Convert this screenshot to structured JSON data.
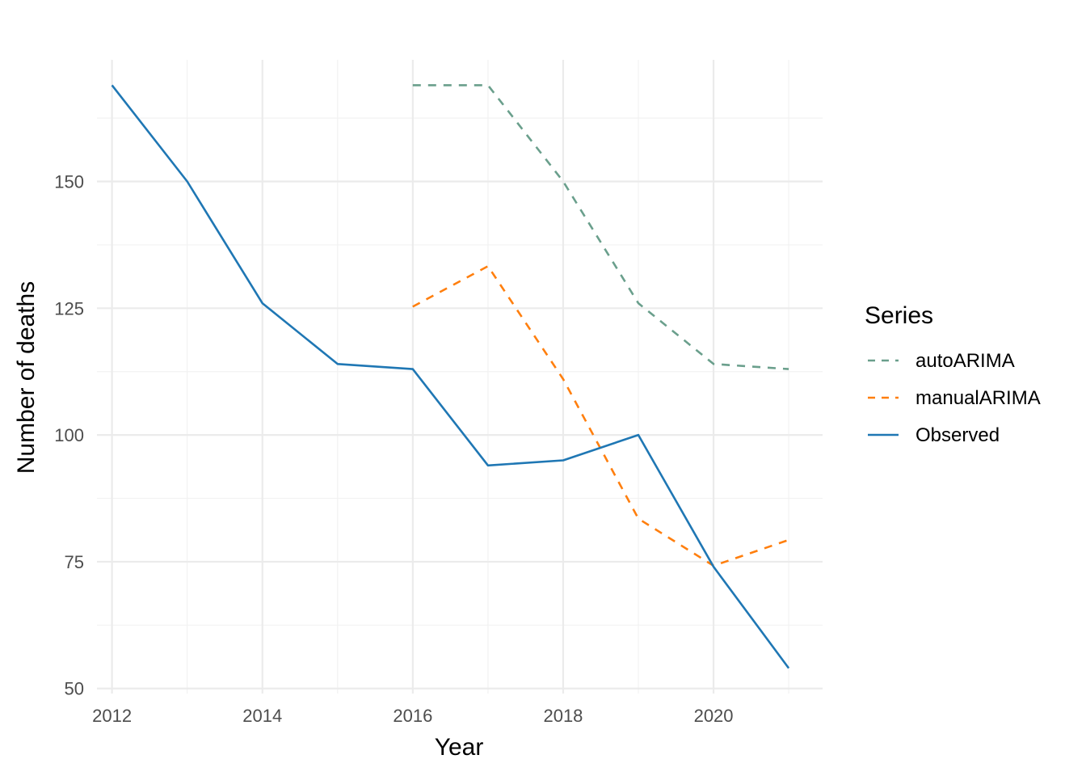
{
  "chart_data": {
    "type": "line",
    "title": "",
    "xlabel": "Year",
    "ylabel": "Number of deaths",
    "xlim": [
      2011.8,
      2021.45
    ],
    "ylim": [
      49,
      174
    ],
    "x_ticks": [
      2012,
      2014,
      2016,
      2018,
      2020
    ],
    "x_ticks_text": [
      "2012",
      "2014",
      "2016",
      "2018",
      "2020"
    ],
    "y_ticks": [
      50,
      75,
      100,
      125,
      150
    ],
    "y_ticks_text": [
      "50",
      "75",
      "100",
      "125",
      "150"
    ],
    "grid": true,
    "legend": {
      "title": "Series",
      "position": "right"
    },
    "series": [
      {
        "name": "autoARIMA",
        "color": "#6a9f8c",
        "dash": "dashed",
        "x": [
          2016,
          2017,
          2018,
          2019,
          2020,
          2021
        ],
        "y": [
          169,
          169,
          150,
          126,
          114,
          113
        ]
      },
      {
        "name": "manualARIMA",
        "color": "#ff7f0e",
        "dash": "dashed",
        "x": [
          2016,
          2017,
          2018,
          2019,
          2020,
          2021
        ],
        "y": [
          125.3,
          133.3,
          111,
          83.5,
          74.2,
          79.3
        ]
      },
      {
        "name": "Observed",
        "color": "#1f77b4",
        "dash": "solid",
        "x": [
          2012,
          2013,
          2014,
          2015,
          2016,
          2017,
          2018,
          2019,
          2020,
          2021
        ],
        "y": [
          169,
          150,
          126,
          114,
          113,
          94,
          95,
          100,
          74,
          54
        ]
      }
    ]
  }
}
